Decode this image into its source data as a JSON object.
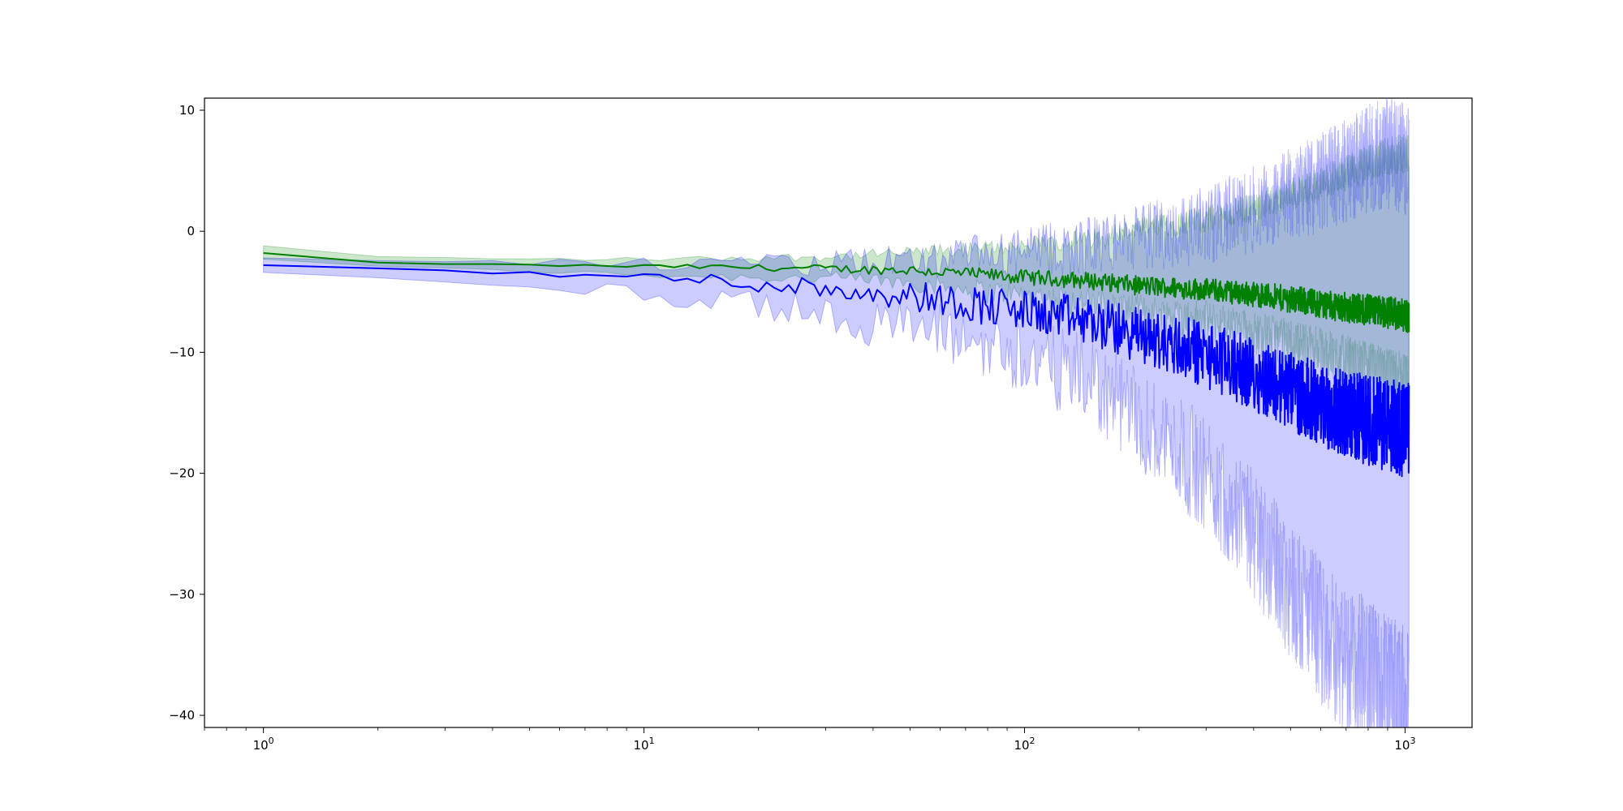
{
  "chart_data": {
    "type": "line",
    "title": "",
    "xlabel": "",
    "ylabel": "",
    "xscale": "log",
    "xlim": [
      0.7,
      1500
    ],
    "ylim": [
      -41,
      11
    ],
    "x_ticks": [
      {
        "value": 1,
        "base": "10",
        "exp": "0"
      },
      {
        "value": 10,
        "base": "10",
        "exp": "1"
      },
      {
        "value": 100,
        "base": "10",
        "exp": "2"
      },
      {
        "value": 1000,
        "base": "10",
        "exp": "3"
      }
    ],
    "y_ticks": [
      {
        "value": 10,
        "label": "10"
      },
      {
        "value": 0,
        "label": "0"
      },
      {
        "value": -10,
        "label": "−10"
      },
      {
        "value": -20,
        "label": "−20"
      },
      {
        "value": -30,
        "label": "−30"
      },
      {
        "value": -40,
        "label": "−40"
      }
    ],
    "grid": false,
    "legend": "none",
    "series": [
      {
        "color": "#008000",
        "band_color": "#008000",
        "x": [
          1,
          2,
          5,
          10,
          20,
          30,
          50,
          70,
          100,
          150,
          200,
          300,
          400,
          500,
          600,
          700,
          800,
          900,
          1024
        ],
        "mean": [
          -1.8,
          -2.6,
          -2.8,
          -2.9,
          -3.0,
          -3.1,
          -3.2,
          -3.5,
          -3.8,
          -4.1,
          -4.5,
          -4.8,
          -5.2,
          -5.6,
          -6.0,
          -6.3,
          -6.5,
          -6.7,
          -7.0
        ],
        "lower": [
          -2.3,
          -2.9,
          -3.3,
          -3.6,
          -3.8,
          -3.9,
          -4.2,
          -4.8,
          -5.3,
          -6.0,
          -6.6,
          -7.4,
          -8.4,
          -9.2,
          -10.0,
          -10.8,
          -11.4,
          -12.0,
          -12.5
        ],
        "upper": [
          -1.2,
          -2.1,
          -2.3,
          -2.3,
          -2.2,
          -2.1,
          -1.8,
          -1.5,
          -1.2,
          -0.6,
          0.2,
          1.0,
          2.0,
          3.0,
          4.0,
          4.8,
          5.6,
          6.2,
          6.5
        ],
        "noise": 0.55
      },
      {
        "color": "#0000ff",
        "band_color": "#0000ff",
        "x": [
          1,
          2,
          5,
          10,
          20,
          30,
          50,
          70,
          100,
          150,
          200,
          300,
          400,
          500,
          600,
          700,
          800,
          900,
          1024
        ],
        "mean": [
          -2.8,
          -3.1,
          -3.5,
          -3.8,
          -4.3,
          -4.7,
          -5.3,
          -5.9,
          -6.6,
          -7.5,
          -8.6,
          -10.2,
          -11.8,
          -13.2,
          -14.3,
          -15.1,
          -15.6,
          -16.0,
          -16.5
        ],
        "lower": [
          -3.4,
          -3.8,
          -4.5,
          -5.2,
          -6.2,
          -6.9,
          -8.0,
          -9.0,
          -10.3,
          -12.5,
          -15.5,
          -20.0,
          -25.0,
          -29.5,
          -33.0,
          -35.5,
          -37.0,
          -38.5,
          -40.0
        ],
        "upper": [
          -2.2,
          -2.4,
          -2.6,
          -2.7,
          -2.8,
          -2.7,
          -2.5,
          -2.2,
          -1.8,
          -1.2,
          -0.5,
          0.5,
          1.8,
          3.0,
          4.0,
          5.0,
          6.0,
          6.5,
          6.0
        ],
        "noise": 1.6
      }
    ]
  }
}
